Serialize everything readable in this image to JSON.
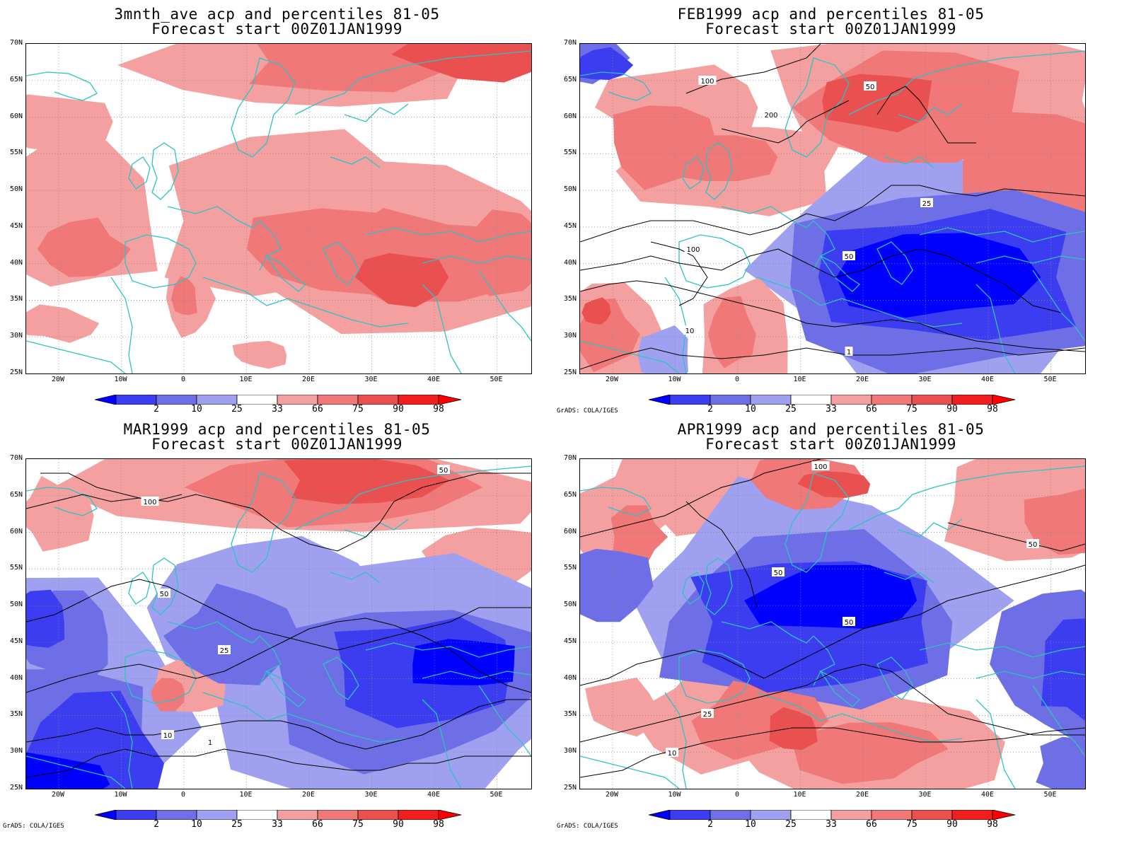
{
  "panels": [
    {
      "title1": "3mnth_ave acp and percentiles 81-05",
      "title2": "Forecast start 00Z01JAN1999",
      "credit": "",
      "variant": 0,
      "contours": false
    },
    {
      "title1": "FEB1999 acp and percentiles 81-05",
      "title2": "Forecast start 00Z01JAN1999",
      "credit": "GrADS: COLA/IGES",
      "variant": 1,
      "contours": true
    },
    {
      "title1": "MAR1999 acp and percentiles 81-05",
      "title2": "Forecast start 00Z01JAN1999",
      "credit": "GrADS: COLA/IGES",
      "variant": 2,
      "contours": true
    },
    {
      "title1": "APR1999 acp and percentiles 81-05",
      "title2": "Forecast start 00Z01JAN1999",
      "credit": "GrADS: COLA/IGES",
      "variant": 3,
      "contours": true
    }
  ],
  "lat_labels": [
    "70N",
    "65N",
    "60N",
    "55N",
    "50N",
    "45N",
    "40N",
    "35N",
    "30N",
    "25N"
  ],
  "lon_labels": [
    "20W",
    "10W",
    "0",
    "10E",
    "20E",
    "30E",
    "40E",
    "50E"
  ],
  "colorbar": {
    "labels": [
      "2",
      "10",
      "25",
      "33",
      "66",
      "75",
      "90",
      "98"
    ],
    "colors": [
      "#0000ff",
      "#3c3cf0",
      "#6e6ee6",
      "#a0a0f0",
      "#ffffff",
      "#f5a0a0",
      "#f07878",
      "#eb5050",
      "#f01e1e",
      "#ff0000"
    ]
  },
  "colors": {
    "coast": "#2bc4c4",
    "contour": "#000000",
    "blue_levels": [
      "#a0a0f0",
      "#6e6ee6",
      "#3c3cf0",
      "#0000ff"
    ],
    "red_levels": [
      "#f5a0a0",
      "#f07878",
      "#eb5050",
      "#f01e1e"
    ]
  },
  "contour_labels": [
    "1",
    "10",
    "25",
    "50",
    "100",
    "200"
  ]
}
